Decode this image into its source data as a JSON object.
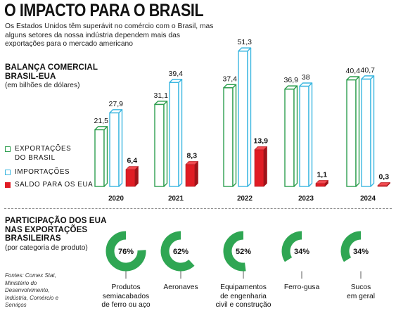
{
  "title": "O IMPACTO PARA O BRASIL",
  "subtitle": "Os Estados Unidos têm superávit no comércio com o Brasil, mas alguns setores da nossa indústria dependem mais das exportações para o mercado americano",
  "colors": {
    "export": "#2e9e4f",
    "import": "#3cb7e0",
    "balance": "#e01c24",
    "donut": "#2fa653",
    "donut_bg": "#ffffff"
  },
  "sources": "Fontes: Comex Stat, Ministério do Desenvolvimento, Indústria, Comércio e Serviços",
  "chart_data": [
    {
      "type": "bar",
      "title": "BALANÇA COMERCIAL BRASIL-EUA",
      "unit_note": "(em bilhões de dólares)",
      "categories": [
        "2020",
        "2021",
        "2022",
        "2023",
        "2024"
      ],
      "series": [
        {
          "name": "EXPORTAÇÕES DO BRASIL",
          "values": [
            21.5,
            31.1,
            37.4,
            36.9,
            40.4
          ],
          "labels": [
            "21,5",
            "31,1",
            "37,4",
            "36,9",
            "40,4"
          ]
        },
        {
          "name": "IMPORTAÇÕES",
          "values": [
            27.9,
            39.4,
            51.3,
            38,
            40.7
          ],
          "labels": [
            "27,9",
            "39,4",
            "51,3",
            "38",
            "40,7"
          ]
        },
        {
          "name": "SALDO PARA OS EUA",
          "values": [
            6.4,
            8.3,
            13.9,
            1.1,
            0.3
          ],
          "labels": [
            "6,4",
            "8,3",
            "13,9",
            "1,1",
            "0,3"
          ]
        }
      ],
      "legend_position": "left",
      "grid": false
    },
    {
      "type": "pie",
      "title": "PARTICIPAÇÃO DOS EUA NAS EXPORTAÇÕES BRASILEIRAS",
      "unit_note": "(por categoria de produto)",
      "categories": [
        "Produtos\nsemiacabados\nde ferro ou aço",
        "Aeronaves",
        "Equipamentos\nde engenharia\ncivil e construção",
        "Ferro-gusa",
        "Sucos\nem geral"
      ],
      "values": [
        76,
        62,
        52,
        34,
        34
      ],
      "labels": [
        "76%",
        "62%",
        "52%",
        "34%",
        "34%"
      ]
    }
  ]
}
